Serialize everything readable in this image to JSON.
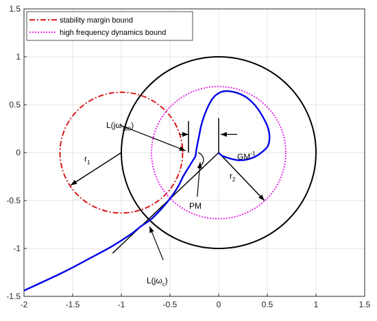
{
  "chart_data": {
    "type": "line",
    "xlim": [
      -2,
      1.5
    ],
    "ylim": [
      -1.5,
      1.5
    ],
    "x_ticks": [
      "-2",
      "-1.5",
      "-1",
      "-0.5",
      "0",
      "0.5",
      "1",
      "1.5"
    ],
    "y_ticks": [
      "1.5",
      "1",
      "0.5",
      "0",
      "-0.5",
      "-1",
      "-1.5"
    ],
    "grid": true,
    "legend_position": "top-left",
    "legend": [
      {
        "label": "stability margin bound",
        "color": "#d7191c",
        "style": "dash-dot"
      },
      {
        "label": "high frequency dynamics bound",
        "color": "#e629e6",
        "style": "dotted"
      }
    ],
    "circles": [
      {
        "role": "stability margin bound",
        "center": [
          -1,
          0
        ],
        "radius": 0.63,
        "color": "#d7191c",
        "style": "dash-dot"
      },
      {
        "role": "high frequency dynamics bound",
        "center": [
          0,
          0
        ],
        "radius": 0.69,
        "color": "#e629e6",
        "style": "dotted"
      },
      {
        "role": "unit circle",
        "center": [
          0,
          0
        ],
        "radius": 1.0,
        "color": "#000000",
        "style": "solid"
      }
    ],
    "nyquist_curve": {
      "color": "#0000e6",
      "x": [
        -2.0,
        -1.6,
        -1.3,
        -1.1,
        -0.9,
        -0.8,
        -0.7,
        -0.6,
        -0.5,
        -0.42,
        -0.36,
        -0.3,
        -0.27,
        -0.24,
        -0.23,
        -0.22,
        -0.2,
        -0.18,
        -0.15,
        -0.1,
        -0.05,
        0.0,
        0.05,
        0.12,
        0.2,
        0.28,
        0.35,
        0.4,
        0.45,
        0.5,
        0.52,
        0.52,
        0.5,
        0.45,
        0.38,
        0.3,
        0.22,
        0.15,
        0.08,
        0.03,
        0.0
      ],
      "y": [
        -1.44,
        -1.25,
        -1.09,
        -0.98,
        -0.85,
        -0.77,
        -0.7,
        -0.6,
        -0.48,
        -0.36,
        -0.24,
        -0.14,
        -0.09,
        -0.04,
        0.02,
        0.08,
        0.18,
        0.28,
        0.38,
        0.5,
        0.58,
        0.62,
        0.64,
        0.64,
        0.62,
        0.58,
        0.52,
        0.46,
        0.38,
        0.28,
        0.2,
        0.12,
        0.06,
        0.01,
        -0.04,
        -0.07,
        -0.08,
        -0.07,
        -0.05,
        -0.03,
        0.0
      ]
    },
    "lines": [
      {
        "role": "radius r1",
        "from": [
          -1,
          0
        ],
        "to": [
          -1.52,
          -0.34
        ],
        "arrow": true
      },
      {
        "role": "radius r2",
        "from": [
          0,
          0
        ],
        "to": [
          0.47,
          -0.5
        ],
        "arrow": true
      },
      {
        "role": "GM vertical at -0.31",
        "from": [
          -0.31,
          0
        ],
        "to": [
          -0.31,
          0.33
        ]
      },
      {
        "role": "GM vertical at 0",
        "from": [
          0,
          0
        ],
        "to": [
          0,
          0.36
        ]
      },
      {
        "role": "PM ray",
        "from": [
          0,
          0
        ],
        "to": [
          -1.09,
          -1.05
        ]
      }
    ],
    "annotations": [
      {
        "label": "r",
        "sub": "1"
      },
      {
        "label": "r",
        "sub": "2"
      },
      {
        "label": "L(jω",
        "sub": "180",
        "suffix": ")"
      },
      {
        "label": "GM",
        "sup": "-1"
      },
      {
        "label": "PM"
      },
      {
        "label": "L(jω",
        "sub": "c",
        "suffix": ")"
      }
    ]
  }
}
